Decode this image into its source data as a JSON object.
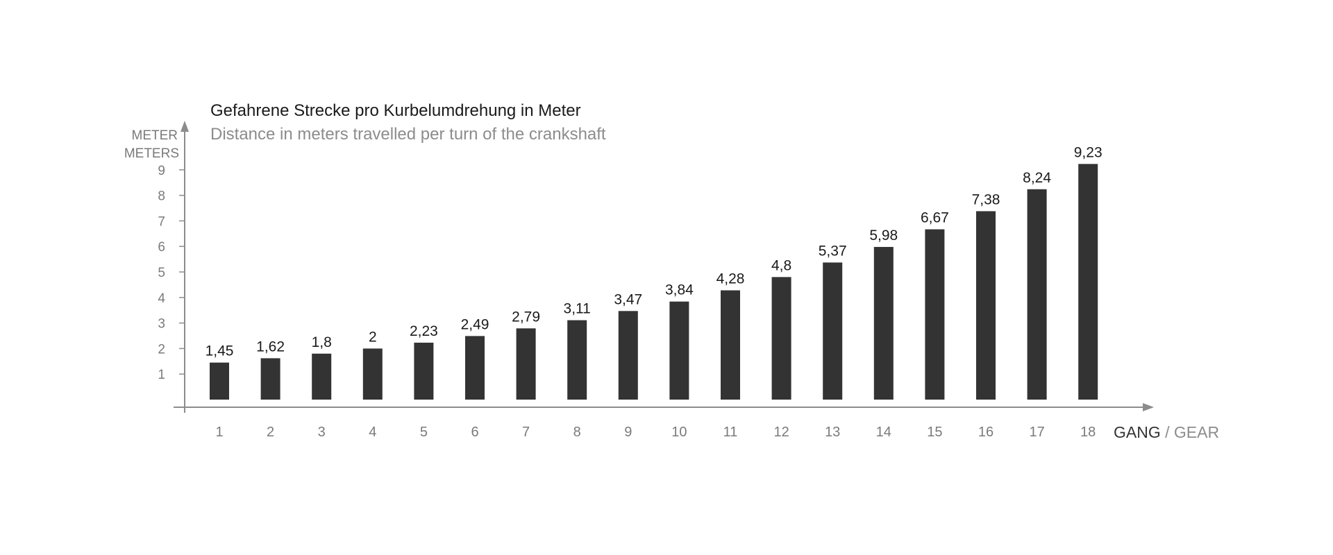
{
  "chart_data": {
    "type": "bar",
    "title": "Gefahrene Strecke pro Kurbelumdrehung in Meter",
    "subtitle": "Distance in meters travelled per turn of the crankshaft",
    "ylabel_lines": [
      "METER",
      "METERS"
    ],
    "xlabel_main": "GANG",
    "xlabel_sep": " / ",
    "xlabel_alt": "GEAR",
    "categories": [
      "1",
      "2",
      "3",
      "4",
      "5",
      "6",
      "7",
      "8",
      "9",
      "10",
      "11",
      "12",
      "13",
      "14",
      "15",
      "16",
      "17",
      "18"
    ],
    "values": [
      1.45,
      1.62,
      1.8,
      2,
      2.23,
      2.49,
      2.79,
      3.11,
      3.47,
      3.84,
      4.28,
      4.8,
      5.37,
      5.98,
      6.67,
      7.38,
      8.24,
      9.23
    ],
    "value_labels": [
      "1,45",
      "1,62",
      "1,8",
      "2",
      "2,23",
      "2,49",
      "2,79",
      "3,11",
      "3,47",
      "3,84",
      "4,28",
      "4,8",
      "5,37",
      "5,98",
      "6,67",
      "7,38",
      "8,24",
      "9,23"
    ],
    "yticks": [
      "1",
      "2",
      "3",
      "4",
      "5",
      "6",
      "7",
      "8",
      "9"
    ],
    "ylim": [
      0,
      9.5
    ],
    "grid": false,
    "colors": {
      "bar": "#333333",
      "axis": "#8c8c8c"
    }
  }
}
